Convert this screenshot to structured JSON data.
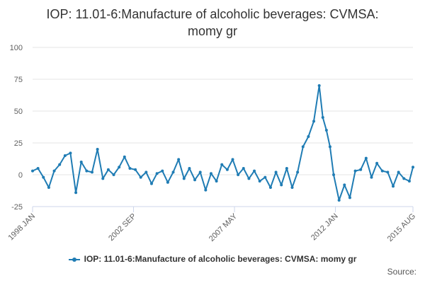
{
  "chart_data": {
    "type": "line",
    "title_line1": "IOP: 11.01-6:Manufacture of alcoholic beverages: CVMSA:",
    "title_line2": "momy gr",
    "xlabel": "",
    "ylabel": "",
    "ylim": [
      -25,
      100
    ],
    "yticks": [
      -25,
      0,
      25,
      50,
      75,
      100
    ],
    "xlim": [
      "1998-01",
      "2015-08"
    ],
    "xtick_labels": [
      "1998 JAN",
      "2002 SEP",
      "2007 MAY",
      "2012 JAN",
      "2015 AUG"
    ],
    "xtick_dates": [
      "1998-01",
      "2002-09",
      "2007-05",
      "2012-01",
      "2015-08"
    ],
    "grid": true,
    "legend_position": "bottom",
    "series": [
      {
        "name": "IOP: 11.01-6:Manufacture of alcoholic beverages: CVMSA: momy gr",
        "color": "#1f7cb4",
        "x": [
          "1998-01",
          "1998-04",
          "1998-07",
          "1998-10",
          "1999-01",
          "1999-04",
          "1999-07",
          "1999-10",
          "2000-01",
          "2000-04",
          "2000-07",
          "2000-10",
          "2001-01",
          "2001-04",
          "2001-07",
          "2001-10",
          "2002-01",
          "2002-04",
          "2002-07",
          "2002-10",
          "2003-01",
          "2003-04",
          "2003-07",
          "2003-10",
          "2004-01",
          "2004-04",
          "2004-07",
          "2004-10",
          "2005-01",
          "2005-04",
          "2005-07",
          "2005-10",
          "2006-01",
          "2006-04",
          "2006-07",
          "2006-10",
          "2007-01",
          "2007-04",
          "2007-07",
          "2007-10",
          "2008-01",
          "2008-04",
          "2008-07",
          "2008-10",
          "2009-01",
          "2009-04",
          "2009-07",
          "2009-10",
          "2010-01",
          "2010-04",
          "2010-07",
          "2010-10",
          "2011-01",
          "2011-04",
          "2011-06",
          "2011-08",
          "2011-10",
          "2011-12",
          "2012-03",
          "2012-06",
          "2012-09",
          "2012-12",
          "2013-03",
          "2013-06",
          "2013-09",
          "2013-12",
          "2014-03",
          "2014-06",
          "2014-09",
          "2014-12",
          "2015-03",
          "2015-06",
          "2015-08"
        ],
        "values": [
          3,
          5,
          -2,
          -10,
          3,
          8,
          15,
          17,
          -14,
          10,
          3,
          2,
          20,
          -3,
          4,
          0,
          6,
          14,
          5,
          4,
          -2,
          2,
          -7,
          1,
          3,
          -6,
          2,
          12,
          -3,
          5,
          -4,
          2,
          -12,
          1,
          -5,
          8,
          4,
          12,
          0,
          5,
          -3,
          3,
          -5,
          -2,
          -10,
          2,
          -8,
          5,
          -10,
          2,
          22,
          30,
          42,
          70,
          45,
          35,
          22,
          0,
          -20,
          -8,
          -18,
          3,
          4,
          13,
          -2,
          9,
          3,
          2,
          -9,
          2,
          -3,
          -5,
          6
        ]
      }
    ]
  },
  "credit": "Source:"
}
